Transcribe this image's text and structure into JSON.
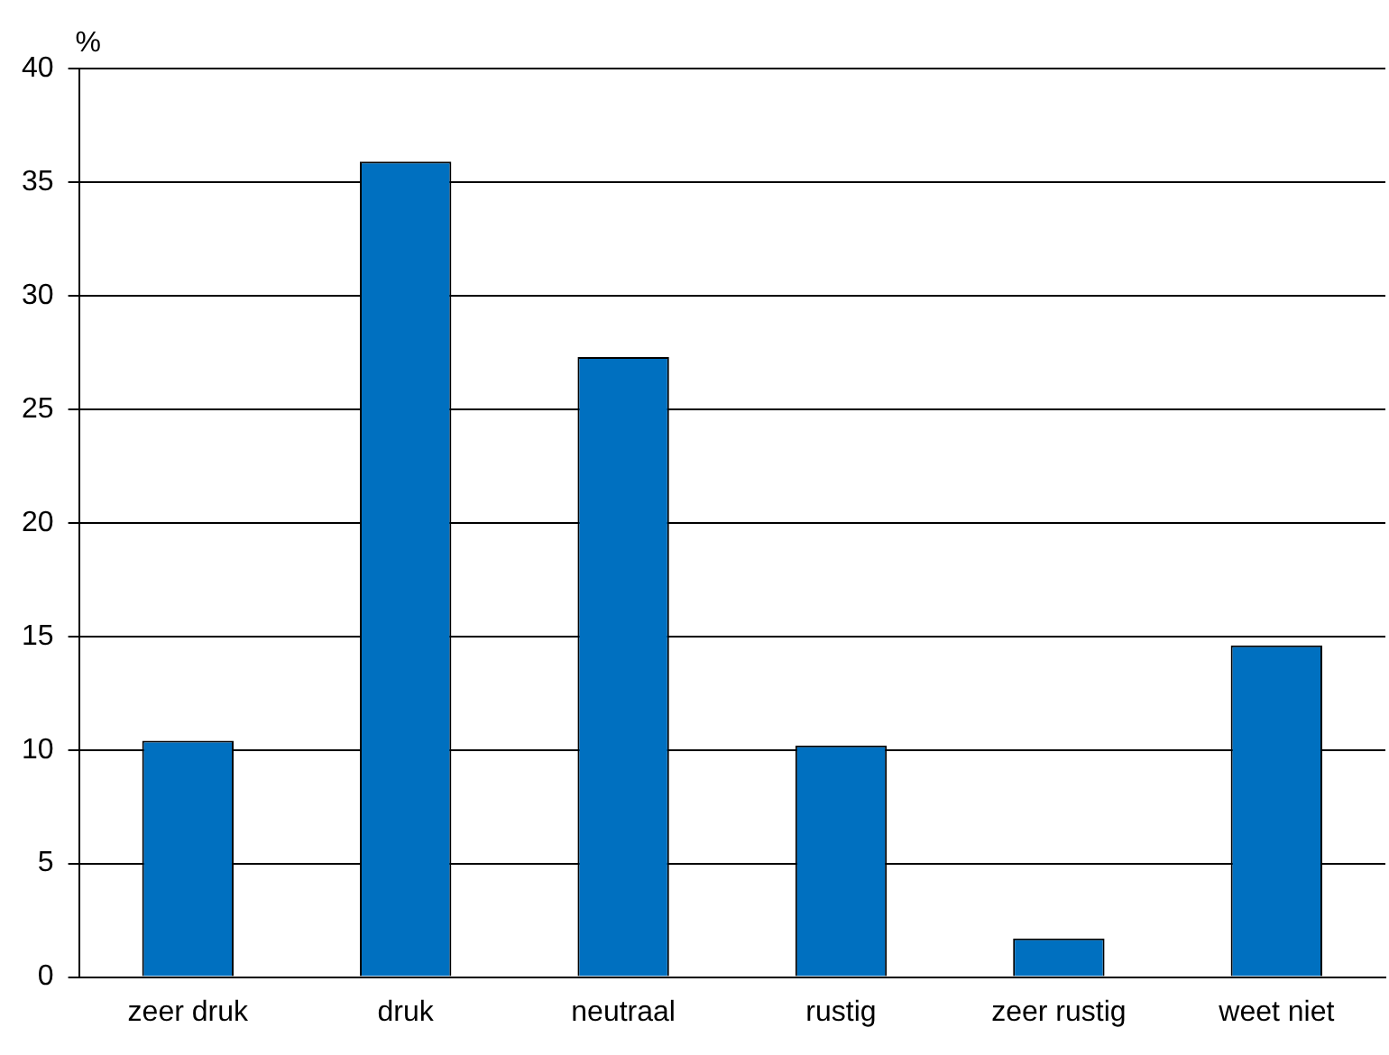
{
  "chart_data": {
    "type": "bar",
    "ylabel": "%",
    "categories": [
      "zeer druk",
      "druk",
      "neutraal",
      "rustig",
      "zeer rustig",
      "weet niet"
    ],
    "values": [
      10.4,
      35.9,
      27.3,
      10.2,
      1.7,
      14.6
    ],
    "color": "#0070c0",
    "ylim": [
      0,
      40
    ],
    "yticks": [
      0,
      5,
      10,
      15,
      20,
      25,
      30,
      35,
      40
    ],
    "grid": "y",
    "legend": false
  }
}
